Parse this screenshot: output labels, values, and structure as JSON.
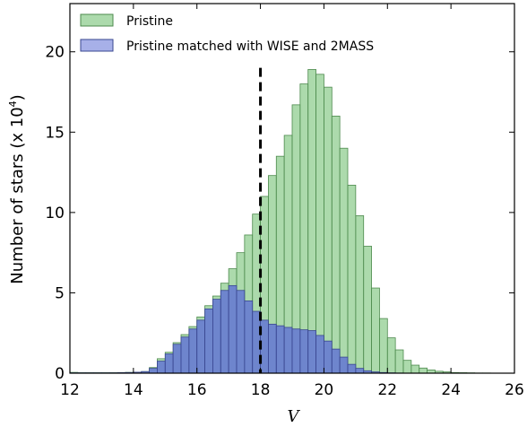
{
  "chart_data": {
    "type": "bar",
    "xlabel": "V",
    "ylabel": "Number of stars (x 10",
    "ylabel_sup": "4",
    "ylabel_end": ")",
    "xlim": [
      12,
      26
    ],
    "ylim": [
      0,
      23
    ],
    "xticks": [
      12,
      14,
      16,
      18,
      20,
      22,
      24,
      26
    ],
    "yticks": [
      0,
      5,
      10,
      15,
      20
    ],
    "bin_width": 0.25,
    "vline_x": 18,
    "series": [
      {
        "name": "Pristine",
        "color": "#7fc67f",
        "edge": "#4d8a4d",
        "x_start": 12.0,
        "values": [
          0.05,
          0.03,
          0.03,
          0.03,
          0.03,
          0.03,
          0.04,
          0.05,
          0.06,
          0.1,
          0.35,
          0.9,
          1.3,
          1.9,
          2.4,
          2.9,
          3.5,
          4.2,
          4.8,
          5.6,
          6.5,
          7.5,
          8.6,
          9.9,
          11.0,
          12.3,
          13.5,
          14.8,
          16.7,
          18.0,
          18.9,
          18.6,
          17.8,
          16.0,
          14.0,
          11.7,
          9.8,
          7.9,
          5.3,
          3.4,
          2.2,
          1.45,
          0.8,
          0.5,
          0.32,
          0.2,
          0.12,
          0.08,
          0.04,
          0.03,
          0.02,
          0.01,
          0.01,
          0.0,
          0.0,
          0.0
        ]
      },
      {
        "name": "Pristine matched with WISE and 2MASS",
        "color": "#5f6fd6",
        "edge": "#3a4790",
        "x_start": 12.0,
        "values": [
          0.02,
          0.02,
          0.02,
          0.02,
          0.02,
          0.02,
          0.03,
          0.04,
          0.06,
          0.1,
          0.3,
          0.75,
          1.2,
          1.8,
          2.25,
          2.75,
          3.3,
          4.0,
          4.6,
          5.15,
          5.45,
          5.15,
          4.5,
          3.85,
          3.3,
          3.05,
          2.95,
          2.85,
          2.75,
          2.7,
          2.65,
          2.35,
          2.0,
          1.5,
          1.0,
          0.55,
          0.3,
          0.15,
          0.08,
          0.04,
          0.02,
          0.01,
          0.0,
          0.0,
          0.0,
          0.0,
          0.0,
          0.0,
          0.0,
          0.0,
          0.0,
          0.0,
          0.0,
          0.0,
          0.0,
          0.0
        ]
      }
    ]
  }
}
